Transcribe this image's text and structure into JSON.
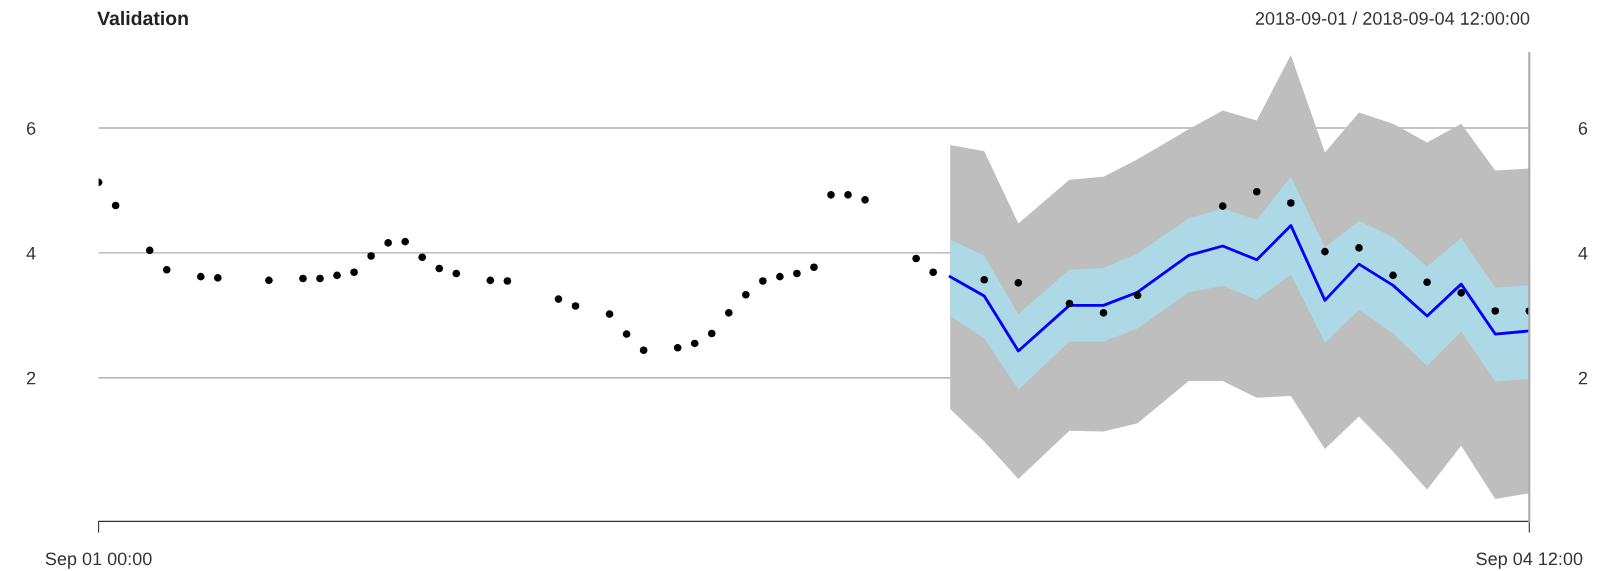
{
  "chart_data": {
    "type": "line",
    "title": "Validation",
    "subtitle": "2018-09-01 / 2018-09-04 12:00:00",
    "xlim": [
      "2018-09-01T00:00",
      "2018-09-04T12:00"
    ],
    "xticks": [
      {
        "value": "2018-09-01T00:00",
        "label": "Sep 01 00:00"
      },
      {
        "value": "2018-09-04T12:00",
        "label": "Sep 04 12:00"
      }
    ],
    "ylim": [
      -0.3,
      7.2
    ],
    "yticks": [
      2,
      4,
      6
    ],
    "y2lim": [
      -0.3,
      7.2
    ],
    "y2ticks": [
      2,
      4,
      6
    ],
    "grid": "y",
    "series": [
      {
        "type": "line",
        "color": "#bebebe",
        "x": [
          "2018-09-03T02:00",
          "2018-09-03T04:00",
          "2018-09-03T06:00",
          "2018-09-03T09:00",
          "2018-09-03T11:00",
          "2018-09-03T13:00",
          "2018-09-03T16:00",
          "2018-09-03T18:00",
          "2018-09-03T20:00",
          "2018-09-03T22:00",
          "2018-09-04T00:00",
          "2018-09-04T02:00",
          "2018-09-04T04:00",
          "2018-09-04T06:00",
          "2018-09-04T08:00",
          "2018-09-04T10:00",
          "2018-09-04T12:00"
        ],
        "values": [
          3.62,
          3.31,
          2.43,
          3.16,
          3.16,
          3.37,
          3.96,
          4.11,
          3.89,
          4.44,
          3.24,
          3.82,
          3.48,
          2.99,
          3.5,
          2.7,
          2.75
        ],
        "upper": [
          5.73,
          5.63,
          4.47,
          5.17,
          5.22,
          5.5,
          5.98,
          6.28,
          6.12,
          7.17,
          5.61,
          6.25,
          6.07,
          5.77,
          6.07,
          5.32,
          5.35
        ],
        "lower": [
          1.5,
          0.98,
          0.38,
          1.15,
          1.14,
          1.27,
          1.95,
          1.95,
          1.68,
          1.71,
          0.86,
          1.38,
          0.82,
          0.21,
          0.91,
          0.06,
          0.15
        ]
      },
      {
        "color": "#0000ff",
        "x": [
          "2018-09-03T02:00",
          "2018-09-03T04:00",
          "2018-09-03T06:00",
          "2018-09-03T09:00",
          "2018-09-03T11:00",
          "2018-09-03T13:00",
          "2018-09-03T16:00",
          "2018-09-03T18:00",
          "2018-09-03T20:00",
          "2018-09-03T22:00",
          "2018-09-04T00:00",
          "2018-09-04T02:00",
          "2018-09-04T04:00",
          "2018-09-04T06:00",
          "2018-09-04T08:00",
          "2018-09-04T10:00",
          "2018-09-04T12:00"
        ],
        "values": [
          3.62,
          3.31,
          2.43,
          3.16,
          3.16,
          3.37,
          3.96,
          4.11,
          3.89,
          4.44,
          3.24,
          3.82,
          3.48,
          2.99,
          3.5,
          2.7,
          2.75
        ],
        "upper": [
          4.21,
          3.96,
          3.02,
          3.73,
          3.76,
          3.99,
          4.55,
          4.71,
          4.53,
          5.22,
          4.09,
          4.51,
          4.25,
          3.78,
          4.24,
          3.44,
          3.48
        ],
        "lower": [
          2.99,
          2.63,
          1.81,
          2.58,
          2.58,
          2.79,
          3.37,
          3.47,
          3.25,
          3.65,
          2.56,
          3.09,
          2.71,
          2.19,
          2.74,
          1.94,
          1.98
        ]
      },
      {
        "type": "scatter",
        "color": "#000000",
        "marker": "circle",
        "x": [
          "2018-09-01T00:00",
          "2018-09-01T01:00",
          "2018-09-01T03:00",
          "2018-09-01T04:00",
          "2018-09-01T06:00",
          "2018-09-01T07:00",
          "2018-09-01T10:00",
          "2018-09-01T12:00",
          "2018-09-01T13:00",
          "2018-09-01T14:00",
          "2018-09-01T15:00",
          "2018-09-01T16:00",
          "2018-09-01T17:00",
          "2018-09-01T18:00",
          "2018-09-01T19:00",
          "2018-09-01T20:00",
          "2018-09-01T21:00",
          "2018-09-01T23:00",
          "2018-09-02T00:00",
          "2018-09-02T03:00",
          "2018-09-02T04:00",
          "2018-09-02T06:00",
          "2018-09-02T07:00",
          "2018-09-02T08:00",
          "2018-09-02T10:00",
          "2018-09-02T11:00",
          "2018-09-02T12:00",
          "2018-09-02T13:00",
          "2018-09-02T14:00",
          "2018-09-02T15:00",
          "2018-09-02T16:00",
          "2018-09-02T17:00",
          "2018-09-02T18:00",
          "2018-09-02T19:00",
          "2018-09-02T20:00",
          "2018-09-02T21:00",
          "2018-09-03T00:00",
          "2018-09-03T01:00",
          "2018-09-03T04:00",
          "2018-09-03T06:00",
          "2018-09-03T09:00",
          "2018-09-03T11:00",
          "2018-09-03T13:00",
          "2018-09-03T18:00",
          "2018-09-03T20:00",
          "2018-09-03T22:00",
          "2018-09-04T00:00",
          "2018-09-04T02:00",
          "2018-09-04T04:00",
          "2018-09-04T06:00",
          "2018-09-04T08:00",
          "2018-09-04T10:00",
          "2018-09-04T12:00"
        ],
        "values": [
          5.13,
          4.76,
          4.04,
          3.73,
          3.62,
          3.6,
          3.56,
          3.59,
          3.59,
          3.64,
          3.69,
          3.95,
          4.16,
          4.18,
          3.93,
          3.75,
          3.67,
          3.56,
          3.55,
          3.26,
          3.15,
          3.02,
          2.7,
          2.44,
          2.48,
          2.55,
          2.71,
          3.04,
          3.33,
          3.55,
          3.62,
          3.67,
          3.77,
          4.93,
          4.93,
          4.85,
          3.91,
          3.69,
          3.57,
          3.52,
          3.19,
          3.04,
          3.32,
          4.75,
          4.98,
          4.8,
          4.02,
          4.08,
          3.64,
          3.53,
          3.36,
          3.07,
          3.07
        ]
      }
    ]
  }
}
